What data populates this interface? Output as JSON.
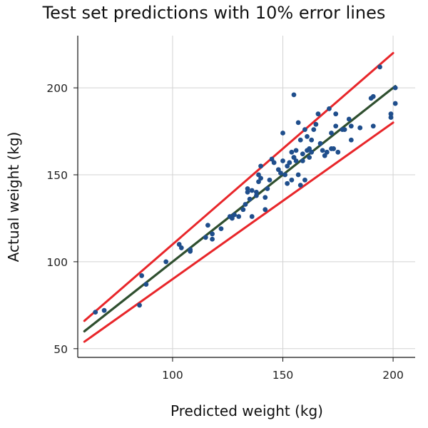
{
  "chart_data": {
    "type": "scatter",
    "title": "Test set predictions with 10% error lines",
    "xlabel": "Predicted weight (kg)",
    "ylabel": "Actual weight (kg)",
    "xlim": [
      57,
      210
    ],
    "ylim": [
      45,
      230
    ],
    "x_ticks": [
      100,
      150,
      200
    ],
    "y_ticks": [
      50,
      100,
      150,
      200
    ],
    "grid": true,
    "colors": {
      "points": "#1f4e8c",
      "fit_line": "#2f4f2f",
      "error_lines": "#e8262a"
    },
    "lines": {
      "fit": {
        "x": [
          60,
          201
        ],
        "y": [
          60,
          201
        ]
      },
      "upper_10pct": {
        "x": [
          60,
          200
        ],
        "y": [
          66,
          220
        ]
      },
      "lower_10pct": {
        "x": [
          60,
          200
        ],
        "y": [
          54,
          180
        ]
      }
    },
    "points": {
      "x": [
        65,
        69,
        85,
        86,
        88,
        97,
        103,
        104,
        108,
        108,
        115,
        116,
        118,
        118,
        122,
        126,
        127,
        128,
        130,
        132,
        133,
        134,
        134,
        135,
        136,
        136,
        138,
        138,
        139,
        139,
        140,
        140,
        142,
        142,
        143,
        144,
        145,
        146,
        148,
        149,
        150,
        150,
        151,
        152,
        152,
        153,
        154,
        154,
        155,
        155,
        155,
        156,
        156,
        157,
        157,
        158,
        158,
        159,
        159,
        160,
        160,
        161,
        161,
        162,
        162,
        163,
        163,
        164,
        165,
        166,
        167,
        168,
        169,
        170,
        171,
        172,
        172,
        173,
        174,
        174,
        175,
        177,
        178,
        180,
        181,
        181,
        185,
        190,
        191,
        191,
        194,
        199,
        199,
        201,
        201
      ],
      "y": [
        71,
        72,
        75,
        92,
        87,
        100,
        110,
        108,
        106,
        107,
        114,
        121,
        113,
        116,
        119,
        126,
        125,
        127,
        126,
        130,
        133,
        140,
        142,
        136,
        141,
        126,
        138,
        140,
        146,
        150,
        148,
        155,
        130,
        137,
        142,
        147,
        159,
        157,
        153,
        151,
        174,
        158,
        150,
        155,
        145,
        157,
        163,
        147,
        196,
        160,
        160,
        164,
        158,
        150,
        180,
        144,
        170,
        162,
        158,
        176,
        147,
        172,
        164,
        165,
        160,
        170,
        163,
        176,
        179,
        185,
        168,
        164,
        161,
        163,
        188,
        174,
        165,
        165,
        185,
        178,
        163,
        176,
        176,
        182,
        170,
        178,
        177,
        194,
        195,
        178,
        212,
        183,
        185,
        200,
        191
      ]
    }
  }
}
